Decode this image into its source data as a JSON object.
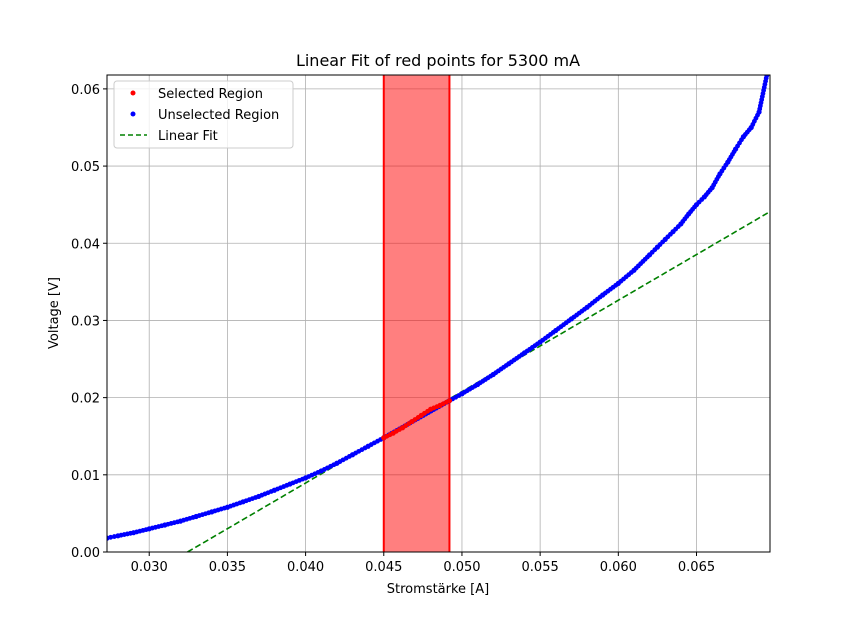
{
  "chart_data": {
    "type": "scatter",
    "title": "Linear Fit of red points for 5300 mA",
    "xlabel": "Stromstärke [A]",
    "ylabel": "Voltage [V]",
    "xlim": [
      0.0273,
      0.0697
    ],
    "ylim": [
      0.0,
      0.0618
    ],
    "x_ticks": [
      0.03,
      0.035,
      0.04,
      0.045,
      0.05,
      0.055,
      0.06,
      0.065
    ],
    "x_tick_labels": [
      "0.030",
      "0.035",
      "0.040",
      "0.045",
      "0.050",
      "0.055",
      "0.060",
      "0.065"
    ],
    "y_ticks": [
      0.0,
      0.01,
      0.02,
      0.03,
      0.04,
      0.05,
      0.06
    ],
    "y_tick_labels": [
      "0.00",
      "0.01",
      "0.02",
      "0.03",
      "0.04",
      "0.05",
      "0.06"
    ],
    "grid": true,
    "legend_position": "top-left",
    "selected_span": [
      0.045,
      0.0492
    ],
    "series": [
      {
        "name": "Selected Region",
        "style": "points",
        "color": "#ff0000",
        "x": [
          0.045,
          0.0456,
          0.0462,
          0.0468,
          0.0474,
          0.048,
          0.0486,
          0.0492
        ],
        "y": [
          0.0148,
          0.0154,
          0.0161,
          0.0169,
          0.0177,
          0.0185,
          0.019,
          0.0196
        ]
      },
      {
        "name": "Unselected Region",
        "style": "points",
        "color": "#0000ff",
        "x": [
          0.0273,
          0.028,
          0.029,
          0.03,
          0.031,
          0.032,
          0.033,
          0.034,
          0.035,
          0.036,
          0.037,
          0.038,
          0.039,
          0.04,
          0.041,
          0.042,
          0.043,
          0.044,
          0.045,
          0.0492,
          0.05,
          0.051,
          0.052,
          0.053,
          0.054,
          0.055,
          0.056,
          0.057,
          0.058,
          0.059,
          0.06,
          0.061,
          0.062,
          0.0625,
          0.063,
          0.0635,
          0.064,
          0.0645,
          0.065,
          0.0655,
          0.066,
          0.0665,
          0.067,
          0.0675,
          0.068,
          0.0685,
          0.069,
          0.0695
        ],
        "y": [
          0.0018,
          0.0021,
          0.0025,
          0.003,
          0.0035,
          0.004,
          0.0046,
          0.0052,
          0.0058,
          0.0065,
          0.0072,
          0.008,
          0.0088,
          0.0096,
          0.0105,
          0.0115,
          0.0126,
          0.0137,
          0.0148,
          0.0196,
          0.0205,
          0.0217,
          0.023,
          0.0244,
          0.0258,
          0.0272,
          0.0287,
          0.0302,
          0.0317,
          0.0333,
          0.0348,
          0.0365,
          0.0385,
          0.0395,
          0.0405,
          0.0415,
          0.0425,
          0.0438,
          0.045,
          0.046,
          0.0472,
          0.049,
          0.0505,
          0.0522,
          0.0538,
          0.055,
          0.057,
          0.0618
        ]
      },
      {
        "name": "Linear Fit",
        "style": "dashed-line",
        "color": "#008000",
        "x": [
          0.03245,
          0.0697
        ],
        "y": [
          0.0,
          0.0441
        ]
      }
    ]
  }
}
